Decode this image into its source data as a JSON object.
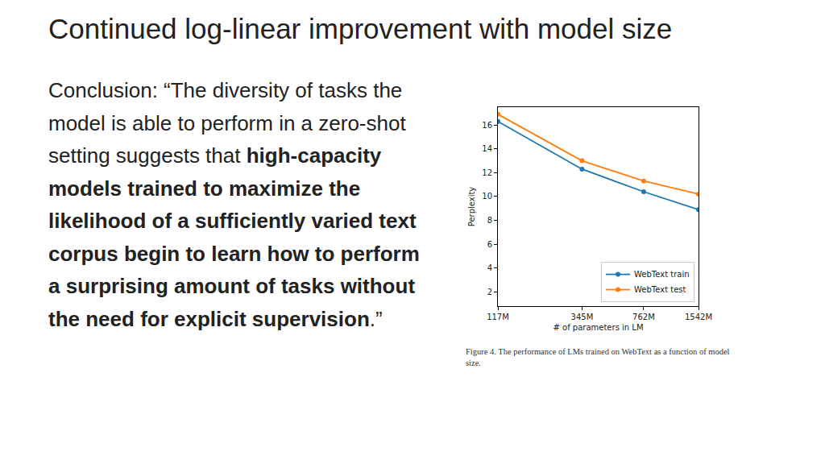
{
  "slide": {
    "title": "Continued log-linear improvement with model size",
    "conclusion_lead": "Conclusion: “The diversity of tasks the model is able to perform in a zero-shot setting suggests that ",
    "conclusion_emphasis": "high-capacity models trained to maximize the likelihood of a sufficiently varied text corpus begin to learn how to perform a surprising amount of tasks without the need for explicit supervision",
    "conclusion_end": ".”"
  },
  "chart_data": {
    "type": "line",
    "caption": "Figure 4. The performance of LMs trained on WebText as a function of model size.",
    "x_label": "# of parameters in LM",
    "y_label": "Perplexity",
    "x": [
      117000000,
      345000000,
      762000000,
      1542000000
    ],
    "series": [
      {
        "name": "WebText train",
        "color": "#1f77b4",
        "marker": "circle",
        "values": [
          16.3,
          12.3,
          10.4,
          8.9
        ]
      },
      {
        "name": "WebText test",
        "color": "#ff7f0e",
        "marker": "circle",
        "values": [
          16.9,
          13.0,
          11.3,
          10.2
        ]
      }
    ],
    "log": "x",
    "xlim": [
      117000000,
      1542000000
    ],
    "xticks": [
      {
        "value": 117000000,
        "label": "117M"
      },
      {
        "value": 345000000,
        "label": "345M"
      },
      {
        "value": 762000000,
        "label": "762M"
      },
      {
        "value": 1542000000,
        "label": "1542M"
      }
    ],
    "ylim": [
      0.8,
      17.5
    ],
    "yticks": [
      2,
      4,
      6,
      8,
      10,
      12,
      14,
      16
    ],
    "grid": false,
    "legend": "lower right"
  }
}
